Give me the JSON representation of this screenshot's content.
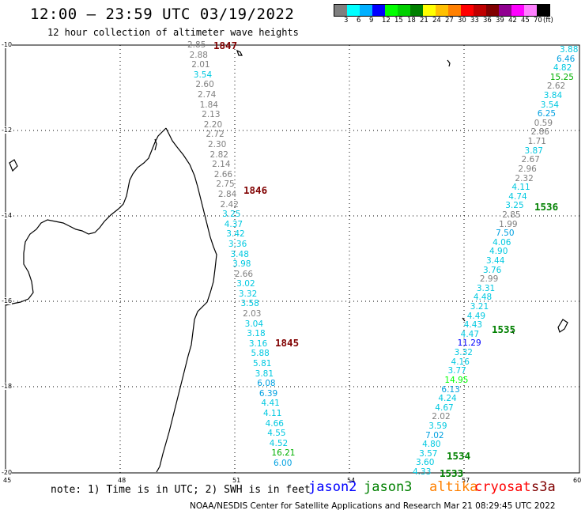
{
  "title": "12:00 – 23:59 UTC 03/19/2022",
  "subtitle": "12 hour collection of altimeter wave heights",
  "legend": {
    "colors": [
      "#7f7f7f",
      "#00ffff",
      "#00b0ff",
      "#0000ff",
      "#00ff00",
      "#00d000",
      "#008000",
      "#ffff00",
      "#ffc000",
      "#ff8000",
      "#ff0000",
      "#c00000",
      "#800000",
      "#900090",
      "#ff00ff",
      "#ff80ff",
      "#000000"
    ],
    "labels": [
      "3",
      "6",
      "9",
      "12",
      "15",
      "18",
      "21",
      "24",
      "27",
      "30",
      "33",
      "36",
      "39",
      "42",
      "45",
      "70",
      "(ft)"
    ]
  },
  "axes": {
    "x_ticks": [
      "45",
      "48",
      "51",
      "54",
      "57",
      "60"
    ],
    "y_ticks": [
      "-10",
      "-12",
      "-14",
      "-16",
      "-18",
      "-20"
    ]
  },
  "tracks": {
    "left": {
      "times": [
        {
          "label": "1847",
          "color": "#800000"
        },
        {
          "label": "1846",
          "color": "#800000"
        },
        {
          "label": "1845",
          "color": "#800000"
        }
      ],
      "values": [
        {
          "v": "2.85",
          "c": "#7f7f7f"
        },
        {
          "v": "2.88",
          "c": "#7f7f7f"
        },
        {
          "v": "2.01",
          "c": "#7f7f7f"
        },
        {
          "v": "3.54",
          "c": "#00c8e0"
        },
        {
          "v": "2.60",
          "c": "#7f7f7f"
        },
        {
          "v": "2.74",
          "c": "#7f7f7f"
        },
        {
          "v": "1.84",
          "c": "#7f7f7f"
        },
        {
          "v": "2.13",
          "c": "#7f7f7f"
        },
        {
          "v": "2.20",
          "c": "#7f7f7f"
        },
        {
          "v": "2.72",
          "c": "#7f7f7f"
        },
        {
          "v": "2.30",
          "c": "#7f7f7f"
        },
        {
          "v": "2.82",
          "c": "#7f7f7f"
        },
        {
          "v": "2.14",
          "c": "#7f7f7f"
        },
        {
          "v": "2.66",
          "c": "#7f7f7f"
        },
        {
          "v": "2.75",
          "c": "#7f7f7f"
        },
        {
          "v": "2.84",
          "c": "#7f7f7f"
        },
        {
          "v": "2.42",
          "c": "#7f7f7f"
        },
        {
          "v": "3.25",
          "c": "#00c8e0"
        },
        {
          "v": "4.37",
          "c": "#00c8e0"
        },
        {
          "v": "3.42",
          "c": "#00c8e0"
        },
        {
          "v": "3.36",
          "c": "#00c8e0"
        },
        {
          "v": "3.48",
          "c": "#00c8e0"
        },
        {
          "v": "3.98",
          "c": "#00c8e0"
        },
        {
          "v": "2.66",
          "c": "#7f7f7f"
        },
        {
          "v": "3.02",
          "c": "#00c8e0"
        },
        {
          "v": "3.32",
          "c": "#00c8e0"
        },
        {
          "v": "3.58",
          "c": "#00c8e0"
        },
        {
          "v": "2.03",
          "c": "#7f7f7f"
        },
        {
          "v": "3.04",
          "c": "#00c8e0"
        },
        {
          "v": "3.18",
          "c": "#00c8e0"
        },
        {
          "v": "3.16",
          "c": "#00c8e0"
        },
        {
          "v": "5.88",
          "c": "#00c8e0"
        },
        {
          "v": "5.81",
          "c": "#00c8e0"
        },
        {
          "v": "3.81",
          "c": "#00c8e0"
        },
        {
          "v": "6.08",
          "c": "#00a0e0"
        },
        {
          "v": "6.39",
          "c": "#00a0e0"
        },
        {
          "v": "4.41",
          "c": "#00c8e0"
        },
        {
          "v": "4.11",
          "c": "#00c8e0"
        },
        {
          "v": "4.66",
          "c": "#00c8e0"
        },
        {
          "v": "4.55",
          "c": "#00c8e0"
        },
        {
          "v": "4.52",
          "c": "#00c8e0"
        },
        {
          "v": "16.21",
          "c": "#00b000"
        },
        {
          "v": "6.00",
          "c": "#00a0e0"
        }
      ]
    },
    "right": {
      "times": [
        {
          "label": "1536",
          "color": "#008000"
        },
        {
          "label": "1535",
          "color": "#008000"
        },
        {
          "label": "1534",
          "color": "#008000"
        },
        {
          "label": "1533",
          "color": "#008000"
        }
      ],
      "values": [
        {
          "v": "3.88",
          "c": "#00c8e0"
        },
        {
          "v": "6.46",
          "c": "#00a0e0"
        },
        {
          "v": "4.82",
          "c": "#00c8e0"
        },
        {
          "v": "15.25",
          "c": "#00b000"
        },
        {
          "v": "2.62",
          "c": "#7f7f7f"
        },
        {
          "v": "3.84",
          "c": "#00c8e0"
        },
        {
          "v": "3.54",
          "c": "#00c8e0"
        },
        {
          "v": "6.25",
          "c": "#00a0e0"
        },
        {
          "v": "0.59",
          "c": "#7f7f7f"
        },
        {
          "v": "2.86",
          "c": "#7f7f7f"
        },
        {
          "v": "1.71",
          "c": "#7f7f7f"
        },
        {
          "v": "3.87",
          "c": "#00c8e0"
        },
        {
          "v": "2.67",
          "c": "#7f7f7f"
        },
        {
          "v": "2.96",
          "c": "#7f7f7f"
        },
        {
          "v": "2.32",
          "c": "#7f7f7f"
        },
        {
          "v": "4.11",
          "c": "#00c8e0"
        },
        {
          "v": "4.74",
          "c": "#00c8e0"
        },
        {
          "v": "3.25",
          "c": "#00c8e0"
        },
        {
          "v": "2.85",
          "c": "#7f7f7f"
        },
        {
          "v": "1.99",
          "c": "#7f7f7f"
        },
        {
          "v": "7.50",
          "c": "#00a0e0"
        },
        {
          "v": "4.06",
          "c": "#00c8e0"
        },
        {
          "v": "4.90",
          "c": "#00c8e0"
        },
        {
          "v": "3.44",
          "c": "#00c8e0"
        },
        {
          "v": "3.76",
          "c": "#00c8e0"
        },
        {
          "v": "2.99",
          "c": "#7f7f7f"
        },
        {
          "v": "3.31",
          "c": "#00c8e0"
        },
        {
          "v": "4.48",
          "c": "#00c8e0"
        },
        {
          "v": "3.21",
          "c": "#00c8e0"
        },
        {
          "v": "4.49",
          "c": "#00c8e0"
        },
        {
          "v": "4.43",
          "c": "#00c8e0"
        },
        {
          "v": "4.47",
          "c": "#00c8e0"
        },
        {
          "v": "11.29",
          "c": "#0000ff"
        },
        {
          "v": "3.32",
          "c": "#00c8e0"
        },
        {
          "v": "4.16",
          "c": "#00c8e0"
        },
        {
          "v": "3.77",
          "c": "#00c8e0"
        },
        {
          "v": "14.95",
          "c": "#00ff00"
        },
        {
          "v": "6.13",
          "c": "#00a0e0"
        },
        {
          "v": "4.24",
          "c": "#00c8e0"
        },
        {
          "v": "4.67",
          "c": "#00c8e0"
        },
        {
          "v": "2.02",
          "c": "#7f7f7f"
        },
        {
          "v": "3.59",
          "c": "#00c8e0"
        },
        {
          "v": "7.02",
          "c": "#00a0e0"
        },
        {
          "v": "4.80",
          "c": "#00c8e0"
        },
        {
          "v": "3.57",
          "c": "#00c8e0"
        },
        {
          "v": "3.60",
          "c": "#00c8e0"
        },
        {
          "v": "4.33",
          "c": "#00c8e0"
        }
      ]
    }
  },
  "note": "note: 1) Time is in UTC; 2) SWH is in feet",
  "satellites": [
    {
      "name": "jason2",
      "color": "#0000ff"
    },
    {
      "name": "jason3",
      "color": "#008000"
    },
    {
      "name": "altika",
      "color": "#ff8000"
    },
    {
      "name": "cryosat",
      "color": "#ff0000"
    },
    {
      "name": "s3a",
      "color": "#800000"
    }
  ],
  "credit": "NOAA/NESDIS Center for Satellite Applications and Research    Mar 21 08:29:45 UTC 2022"
}
